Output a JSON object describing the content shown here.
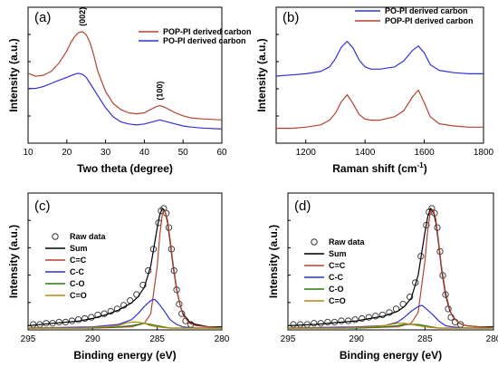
{
  "chart_data": [
    {
      "type": "line",
      "panel_label": "(a)",
      "xlabel": "Two theta (degree)",
      "ylabel": "Intensity (a.u.)",
      "xlim": [
        10,
        60
      ],
      "xticks": [
        "10",
        "20",
        "30",
        "40",
        "50",
        "60"
      ],
      "legend_position": "top-right",
      "annotations": [
        {
          "text": "(002)",
          "x": 24
        },
        {
          "text": "(100)",
          "x": 44
        }
      ],
      "series": [
        {
          "name": "POP-PI derived carbon",
          "color": "#b5432f",
          "x": [
            10,
            12,
            14,
            16,
            18,
            20,
            21,
            22,
            23,
            24,
            25,
            26,
            27,
            28,
            30,
            32,
            34,
            36,
            38,
            40,
            41,
            42,
            43,
            44,
            45,
            46,
            48,
            50,
            52,
            55,
            60
          ],
          "y": [
            0.6,
            0.57,
            0.58,
            0.62,
            0.7,
            0.82,
            0.9,
            0.96,
            1.0,
            1.01,
            0.98,
            0.9,
            0.77,
            0.62,
            0.42,
            0.3,
            0.24,
            0.21,
            0.2,
            0.21,
            0.23,
            0.25,
            0.27,
            0.28,
            0.27,
            0.25,
            0.21,
            0.18,
            0.16,
            0.15,
            0.14
          ]
        },
        {
          "name": "PO-PI derived carbon",
          "color": "#2f32d8",
          "x": [
            10,
            12,
            14,
            16,
            18,
            20,
            22,
            23,
            24,
            25,
            26,
            28,
            30,
            32,
            34,
            36,
            38,
            40,
            42,
            43,
            44,
            45,
            46,
            48,
            50,
            52,
            55,
            60
          ],
          "y": [
            0.45,
            0.45,
            0.47,
            0.5,
            0.53,
            0.56,
            0.59,
            0.6,
            0.59,
            0.56,
            0.5,
            0.38,
            0.26,
            0.17,
            0.12,
            0.1,
            0.09,
            0.1,
            0.12,
            0.13,
            0.14,
            0.13,
            0.12,
            0.1,
            0.08,
            0.07,
            0.06,
            0.05
          ]
        }
      ]
    },
    {
      "type": "line",
      "panel_label": "(b)",
      "xlabel": "Raman shift (cm",
      "xlabel_sup": "-1",
      "xlabel_end": ")",
      "ylabel": "Intensity (a.u.)",
      "xlim": [
        1100,
        1800
      ],
      "xticks": [
        "1200",
        "1400",
        "1600",
        "1800"
      ],
      "legend_position": "top-left",
      "series": [
        {
          "name": "PO-PI derived carbon",
          "color": "#2f32d8",
          "x": [
            1100,
            1150,
            1200,
            1250,
            1280,
            1300,
            1320,
            1340,
            1360,
            1380,
            1400,
            1420,
            1450,
            1500,
            1530,
            1560,
            1580,
            1600,
            1620,
            1650,
            1700,
            1750,
            1800
          ],
          "y": [
            0.5,
            0.51,
            0.52,
            0.54,
            0.58,
            0.65,
            0.75,
            0.8,
            0.74,
            0.64,
            0.58,
            0.56,
            0.56,
            0.58,
            0.63,
            0.72,
            0.76,
            0.7,
            0.6,
            0.55,
            0.53,
            0.52,
            0.52
          ]
        },
        {
          "name": "POP-PI derived carbon",
          "color": "#b5432f",
          "x": [
            1100,
            1150,
            1200,
            1250,
            1280,
            1300,
            1320,
            1340,
            1360,
            1380,
            1400,
            1420,
            1450,
            1500,
            1530,
            1560,
            1580,
            1600,
            1620,
            1650,
            1700,
            1750,
            1800
          ],
          "y": [
            0.05,
            0.05,
            0.06,
            0.08,
            0.12,
            0.18,
            0.28,
            0.34,
            0.26,
            0.17,
            0.13,
            0.12,
            0.12,
            0.15,
            0.2,
            0.32,
            0.38,
            0.27,
            0.15,
            0.09,
            0.07,
            0.06,
            0.06
          ]
        }
      ]
    },
    {
      "type": "line",
      "panel_label": "(c)",
      "xlabel": "Binding energy (eV)",
      "ylabel": "Intensity (a.u.)",
      "xlim": [
        295,
        280
      ],
      "xticks": [
        "295",
        "290",
        "285",
        "280"
      ],
      "legend_position": "top-left",
      "series": [
        {
          "name": "Raw data",
          "color": "#303030",
          "marker": "circle-open",
          "x": [
            294.6,
            294.1,
            293.6,
            293.1,
            292.6,
            292.1,
            291.6,
            291.1,
            290.6,
            290.1,
            289.6,
            289.1,
            288.6,
            288.1,
            287.6,
            287.1,
            286.6,
            286.1,
            285.7,
            285.3,
            284.9,
            284.7,
            284.5,
            284.3,
            284.1,
            283.9,
            283.7,
            283.5,
            283.3,
            283.1,
            282.8,
            282.4
          ],
          "y": [
            0.03,
            0.03,
            0.04,
            0.04,
            0.05,
            0.05,
            0.06,
            0.07,
            0.08,
            0.09,
            0.11,
            0.12,
            0.14,
            0.16,
            0.19,
            0.23,
            0.28,
            0.36,
            0.48,
            0.66,
            0.88,
            0.98,
            1.0,
            0.96,
            0.84,
            0.66,
            0.48,
            0.32,
            0.2,
            0.12,
            0.06,
            0.03
          ]
        },
        {
          "name": "Sum",
          "color": "#000000",
          "x": [
            295,
            293,
            291,
            290,
            289,
            288,
            287,
            286.5,
            286,
            285.5,
            285,
            284.8,
            284.6,
            284.4,
            284.2,
            284,
            283.8,
            283.5,
            283.2,
            283,
            282.5,
            282,
            281,
            280
          ],
          "y": [
            0.02,
            0.04,
            0.06,
            0.08,
            0.11,
            0.15,
            0.21,
            0.26,
            0.34,
            0.52,
            0.84,
            0.95,
            1.0,
            0.98,
            0.88,
            0.72,
            0.54,
            0.32,
            0.18,
            0.12,
            0.05,
            0.03,
            0.01,
            0.01
          ]
        },
        {
          "name": "C=C",
          "color": "#b5432f",
          "x": [
            295,
            290,
            287,
            286,
            285.5,
            285,
            284.8,
            284.6,
            284.4,
            284.2,
            284,
            283.8,
            283.5,
            283.2,
            283,
            282.5,
            282,
            281,
            280
          ],
          "y": [
            0.0,
            0.0,
            0.01,
            0.04,
            0.12,
            0.52,
            0.78,
            0.96,
            0.98,
            0.9,
            0.74,
            0.56,
            0.33,
            0.18,
            0.11,
            0.04,
            0.02,
            0.01,
            0.0
          ]
        },
        {
          "name": "C-C",
          "color": "#2f32d8",
          "x": [
            295,
            290,
            288,
            287,
            286.5,
            286,
            285.5,
            285.2,
            285,
            284.5,
            284,
            283.5,
            283,
            282,
            280
          ],
          "y": [
            0.0,
            0.01,
            0.03,
            0.07,
            0.12,
            0.18,
            0.23,
            0.24,
            0.22,
            0.15,
            0.07,
            0.03,
            0.01,
            0.0,
            0.0
          ]
        },
        {
          "name": "C-O",
          "color": "#2a7a12",
          "x": [
            295,
            290,
            288,
            287,
            286.5,
            286,
            285.5,
            285,
            284.5,
            284,
            283,
            282,
            280
          ],
          "y": [
            0.0,
            0.0,
            0.01,
            0.02,
            0.03,
            0.04,
            0.03,
            0.02,
            0.01,
            0.0,
            0.0,
            0.0,
            0.0
          ]
        },
        {
          "name": "C=O",
          "color": "#b8860b",
          "x": [
            295,
            291,
            289,
            288,
            287.5,
            287,
            286.5,
            286,
            285.5,
            285,
            284,
            283,
            280
          ],
          "y": [
            0.0,
            0.0,
            0.01,
            0.02,
            0.04,
            0.05,
            0.05,
            0.04,
            0.02,
            0.01,
            0.0,
            0.0,
            0.0
          ]
        }
      ]
    },
    {
      "type": "line",
      "panel_label": "(d)",
      "xlabel": "Binding energy (eV)",
      "ylabel": "Intensity (a.u.)",
      "xlim": [
        295,
        280
      ],
      "xticks": [
        "295",
        "290",
        "285",
        "280"
      ],
      "legend_position": "top-left",
      "series": [
        {
          "name": "Raw data",
          "color": "#303030",
          "marker": "circle-open",
          "x": [
            294.6,
            294.1,
            293.6,
            293.1,
            292.6,
            292.1,
            291.6,
            291.1,
            290.6,
            290.1,
            289.6,
            289.1,
            288.6,
            288.1,
            287.6,
            287.1,
            286.6,
            286.1,
            285.7,
            285.3,
            284.9,
            284.7,
            284.5,
            284.3,
            284.1,
            283.9,
            283.7,
            283.5,
            283.3,
            283.1,
            282.8,
            282.4
          ],
          "y": [
            0.03,
            0.03,
            0.03,
            0.04,
            0.04,
            0.05,
            0.05,
            0.06,
            0.06,
            0.07,
            0.08,
            0.09,
            0.1,
            0.11,
            0.13,
            0.16,
            0.2,
            0.26,
            0.38,
            0.6,
            0.86,
            0.97,
            1.0,
            0.96,
            0.84,
            0.64,
            0.44,
            0.28,
            0.16,
            0.09,
            0.05,
            0.03
          ]
        },
        {
          "name": "Sum",
          "color": "#000000",
          "x": [
            295,
            293,
            291,
            290,
            289,
            288,
            287,
            286.5,
            286,
            285.5,
            285,
            284.8,
            284.6,
            284.4,
            284.2,
            284,
            283.8,
            283.5,
            283.2,
            283,
            282.5,
            282,
            281,
            280
          ],
          "y": [
            0.02,
            0.03,
            0.05,
            0.06,
            0.08,
            0.1,
            0.14,
            0.18,
            0.25,
            0.44,
            0.8,
            0.93,
            1.0,
            0.98,
            0.88,
            0.7,
            0.5,
            0.28,
            0.15,
            0.1,
            0.04,
            0.02,
            0.01,
            0.01
          ]
        },
        {
          "name": "C=C",
          "color": "#b5432f",
          "x": [
            295,
            290,
            287,
            286,
            285.5,
            285,
            284.8,
            284.6,
            284.4,
            284.2,
            284,
            283.8,
            283.5,
            283.2,
            283,
            282.5,
            282,
            281,
            280
          ],
          "y": [
            0.0,
            0.0,
            0.01,
            0.04,
            0.13,
            0.56,
            0.82,
            0.98,
            0.99,
            0.91,
            0.72,
            0.52,
            0.3,
            0.16,
            0.1,
            0.04,
            0.02,
            0.01,
            0.0
          ]
        },
        {
          "name": "C-C",
          "color": "#2f32d8",
          "x": [
            295,
            290,
            288,
            287,
            286.5,
            286,
            285.5,
            285.2,
            285,
            284.5,
            284,
            283.5,
            283,
            282,
            280
          ],
          "y": [
            0.0,
            0.01,
            0.02,
            0.05,
            0.09,
            0.14,
            0.18,
            0.19,
            0.17,
            0.12,
            0.06,
            0.02,
            0.01,
            0.0,
            0.0
          ]
        },
        {
          "name": "C-O",
          "color": "#2a7a12",
          "x": [
            295,
            290,
            288,
            287,
            286.5,
            286,
            285.5,
            285,
            284.5,
            284,
            283,
            282,
            280
          ],
          "y": [
            0.0,
            0.0,
            0.01,
            0.02,
            0.03,
            0.03,
            0.03,
            0.02,
            0.01,
            0.0,
            0.0,
            0.0,
            0.0
          ]
        },
        {
          "name": "C=O",
          "color": "#b8860b",
          "x": [
            295,
            291,
            289,
            288,
            287.5,
            287,
            286.5,
            286,
            285.5,
            285,
            284,
            283,
            280
          ],
          "y": [
            0.0,
            0.0,
            0.01,
            0.02,
            0.03,
            0.04,
            0.04,
            0.03,
            0.02,
            0.01,
            0.0,
            0.0,
            0.0
          ]
        }
      ]
    }
  ]
}
